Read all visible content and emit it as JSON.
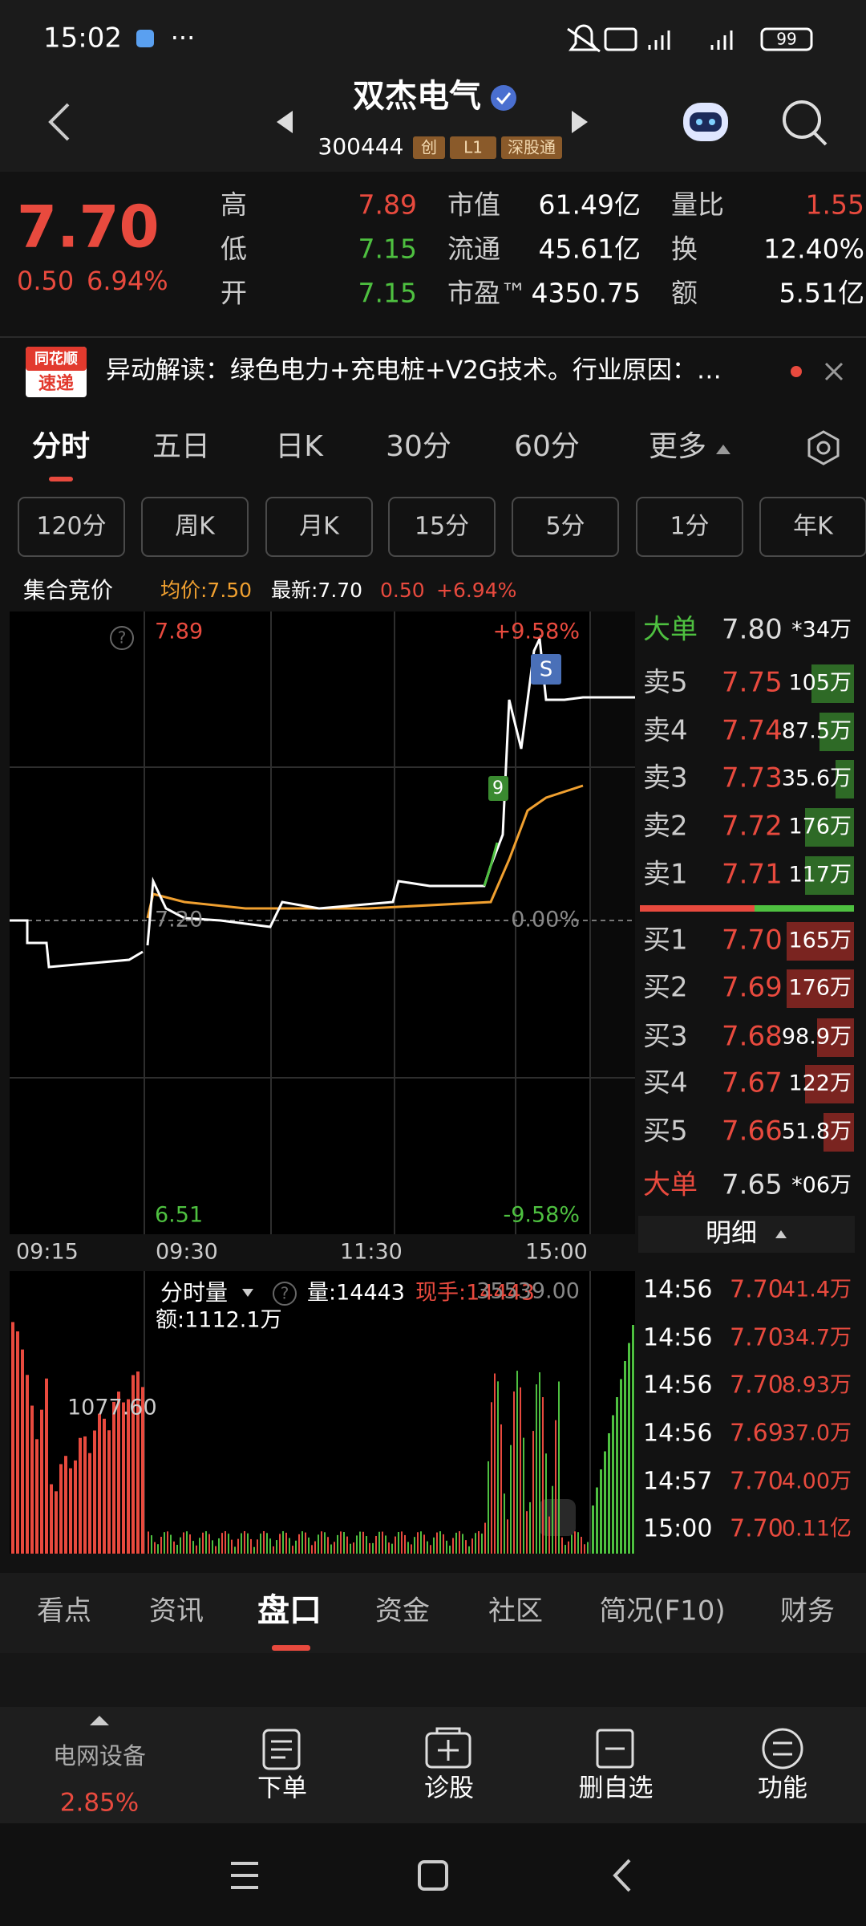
{
  "status_bar": {
    "time": "15:02",
    "battery": "99"
  },
  "header": {
    "title": "双杰电气",
    "code": "300444",
    "tags": [
      "创",
      "L1",
      "深股通"
    ]
  },
  "quote": {
    "price": "7.70",
    "change": "0.50",
    "change_pct": "6.94%",
    "stats": [
      [
        {
          "label": "高",
          "value": "7.89"
        },
        {
          "label": "低",
          "value": "7.15"
        },
        {
          "label": "开",
          "value": "7.15"
        }
      ],
      [
        {
          "label": "市值",
          "value": "61.49亿"
        },
        {
          "label": "流通",
          "value": "45.61亿"
        },
        {
          "label": "市盈™",
          "value": "4350.75"
        }
      ],
      [
        {
          "label": "量比",
          "value": "1.55"
        },
        {
          "label": "换",
          "value": "12.40%"
        },
        {
          "label": "额",
          "value": "5.51亿"
        }
      ]
    ]
  },
  "banner": {
    "badge": [
      "同花顺",
      "速递"
    ],
    "text": "异动解读：绿色电力+充电桩+V2G技术。行业原因：…"
  },
  "period_tabs": [
    "分时",
    "五日",
    "日K",
    "30分",
    "60分",
    "更多"
  ],
  "period_buttons": [
    "120分",
    "周K",
    "月K",
    "15分",
    "5分",
    "1分",
    "年K"
  ],
  "info_line": {
    "auction": "集合竞价",
    "avg": "均价:7.50",
    "latest": "最新:7.70",
    "change": "0.50",
    "change_pct": "+6.94%"
  },
  "chart": {
    "price_high": "7.89",
    "pct_high": "+9.58%",
    "price_mid": "7.20",
    "pct_mid": "0.00%",
    "price_low": "6.51",
    "pct_low": "-9.58%",
    "time_labels": [
      "09:15",
      "09:30",
      "11:30",
      "15:00"
    ],
    "badges": [
      "S",
      "9"
    ]
  },
  "volume": {
    "selector": "分时量",
    "volume": "量:14443",
    "current": "现手:14443",
    "max": "35539.00",
    "amount": "额:1112.1万",
    "pre_max": "1077.60"
  },
  "order_book": {
    "big_sell": {
      "label": "大单",
      "price": "7.80",
      "volume": "*34万"
    },
    "asks": [
      {
        "label": "卖5",
        "price": "7.75",
        "volume": "105万"
      },
      {
        "label": "卖4",
        "price": "7.74",
        "volume": "87.5万"
      },
      {
        "label": "卖3",
        "price": "7.73",
        "volume": "35.6万"
      },
      {
        "label": "卖2",
        "price": "7.72",
        "volume": "176万"
      },
      {
        "label": "卖1",
        "price": "7.71",
        "volume": "117万"
      }
    ],
    "bids": [
      {
        "label": "买1",
        "price": "7.70",
        "volume": "165万"
      },
      {
        "label": "买2",
        "price": "7.69",
        "volume": "176万"
      },
      {
        "label": "买3",
        "price": "7.68",
        "volume": "98.9万"
      },
      {
        "label": "买4",
        "price": "7.67",
        "volume": "122万"
      },
      {
        "label": "买5",
        "price": "7.66",
        "volume": "51.8万"
      }
    ],
    "big_buy": {
      "label": "大单",
      "price": "7.65",
      "volume": "*06万"
    }
  },
  "detail": {
    "title": "明细",
    "rows": [
      {
        "time": "14:56",
        "price": "7.70",
        "volume": "41.4万"
      },
      {
        "time": "14:56",
        "price": "7.70",
        "volume": "34.7万"
      },
      {
        "time": "14:56",
        "price": "7.70",
        "volume": "8.93万"
      },
      {
        "time": "14:56",
        "price": "7.69",
        "volume": "37.0万"
      },
      {
        "time": "14:57",
        "price": "7.70",
        "volume": "4.00万"
      },
      {
        "time": "15:00",
        "price": "7.70",
        "volume": "0.11亿"
      }
    ]
  },
  "bottom_tabs": [
    "看点",
    "资讯",
    "盘口",
    "资金",
    "社区",
    "简况(F10)",
    "财务"
  ],
  "toolbar": {
    "sector": "电网设备",
    "sector_change": "2.85%",
    "actions": [
      "下单",
      "诊股",
      "删自选",
      "功能"
    ]
  }
}
